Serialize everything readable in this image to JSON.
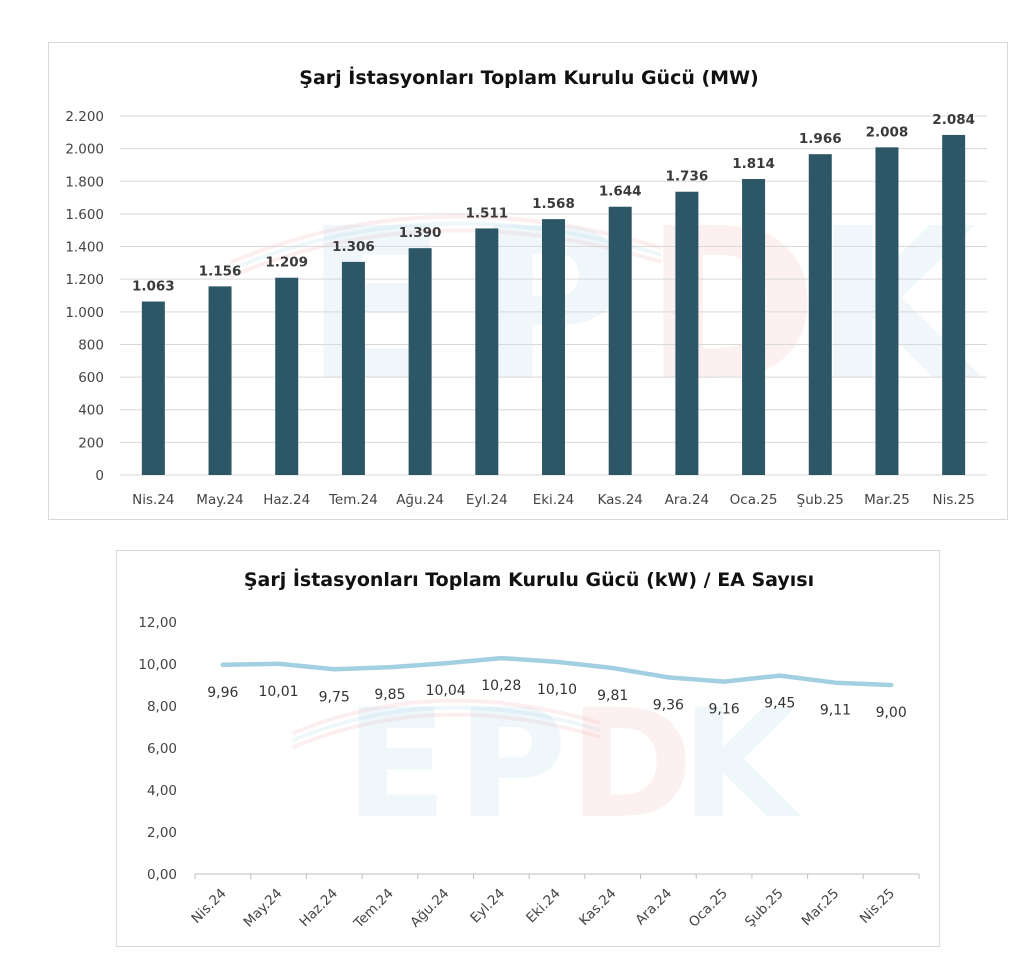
{
  "watermark": {
    "text": "EPDK",
    "colors": {
      "blue": "#9fd0e6",
      "red": "#f3a6a6"
    }
  },
  "chart_data": [
    {
      "type": "bar",
      "title": "Şarj İstasyonları Toplam Kurulu Gücü (MW)",
      "categories": [
        "Nis.24",
        "May.24",
        "Haz.24",
        "Tem.24",
        "Ağu.24",
        "Eyl.24",
        "Eki.24",
        "Kas.24",
        "Ara.24",
        "Oca.25",
        "Şub.25",
        "Mar.25",
        "Nis.25"
      ],
      "values": [
        1063,
        1156,
        1209,
        1306,
        1390,
        1511,
        1568,
        1644,
        1736,
        1814,
        1966,
        2008,
        2084
      ],
      "value_labels": [
        "1.063",
        "1.156",
        "1.209",
        "1.306",
        "1.390",
        "1.511",
        "1.568",
        "1.644",
        "1.736",
        "1.814",
        "1.966",
        "2.008",
        "2.084"
      ],
      "yticks": [
        0,
        200,
        400,
        600,
        800,
        1000,
        1200,
        1400,
        1600,
        1800,
        2000,
        2200
      ],
      "ytick_labels": [
        "0",
        "200",
        "400",
        "600",
        "800",
        "1.000",
        "1.200",
        "1.400",
        "1.600",
        "1.800",
        "2.000",
        "2.200"
      ],
      "ylim": [
        0,
        2200
      ],
      "grid": true,
      "bar_color": "#2d5667"
    },
    {
      "type": "line",
      "title": "Şarj İstasyonları Toplam Kurulu Gücü (kW) / EA Sayısı",
      "categories": [
        "Nis.24",
        "May.24",
        "Haz.24",
        "Tem.24",
        "Ağu.24",
        "Eyl.24",
        "Eki.24",
        "Kas.24",
        "Ara.24",
        "Oca.25",
        "Şub.25",
        "Mar.25",
        "Nis.25"
      ],
      "values": [
        9.96,
        10.01,
        9.75,
        9.85,
        10.04,
        10.28,
        10.1,
        9.81,
        9.36,
        9.16,
        9.45,
        9.11,
        9.0
      ],
      "value_labels": [
        "9,96",
        "10,01",
        "9,75",
        "9,85",
        "10,04",
        "10,28",
        "10,10",
        "9,81",
        "9,36",
        "9,16",
        "9,45",
        "9,11",
        "9,00"
      ],
      "yticks": [
        0,
        2,
        4,
        6,
        8,
        10,
        12
      ],
      "ytick_labels": [
        "0,00",
        "2,00",
        "4,00",
        "6,00",
        "8,00",
        "10,00",
        "12,00"
      ],
      "ylim": [
        0,
        12
      ],
      "grid": false,
      "line_color": "#a3cfe2"
    }
  ]
}
